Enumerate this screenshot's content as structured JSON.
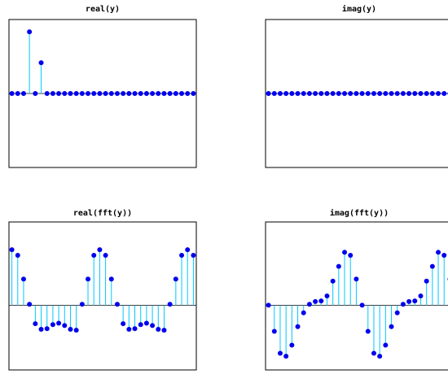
{
  "chart_data": [
    {
      "type": "stem",
      "title": "real(y)",
      "x": [
        1,
        2,
        3,
        4,
        5,
        6,
        7,
        8,
        9,
        10,
        11,
        12,
        13,
        14,
        15,
        16,
        17,
        18,
        19,
        20,
        21,
        22,
        23,
        24,
        25,
        26,
        27,
        28,
        29,
        30,
        31,
        32
      ],
      "values": [
        0,
        0,
        0,
        2,
        0,
        1,
        0,
        0,
        0,
        0,
        0,
        0,
        0,
        0,
        0,
        0,
        0,
        0,
        0,
        0,
        0,
        0,
        0,
        0,
        0,
        0,
        0,
        0,
        0,
        0,
        0,
        0
      ],
      "xlim": [
        0.5,
        32.5
      ],
      "ylim": [
        -2.4,
        2.4
      ],
      "grid": false,
      "colors": {
        "marker": "#0000ee",
        "stem": "#00c8ff",
        "baseline": "#000000"
      }
    },
    {
      "type": "stem",
      "title": "imag(y)",
      "x": [
        1,
        2,
        3,
        4,
        5,
        6,
        7,
        8,
        9,
        10,
        11,
        12,
        13,
        14,
        15,
        16,
        17,
        18,
        19,
        20,
        21,
        22,
        23,
        24,
        25,
        26,
        27,
        28,
        29,
        30,
        31,
        32
      ],
      "values": [
        0,
        0,
        0,
        0,
        0,
        0,
        0,
        0,
        0,
        0,
        0,
        0,
        0,
        0,
        0,
        0,
        0,
        0,
        0,
        0,
        0,
        0,
        0,
        0,
        0,
        0,
        0,
        0,
        0,
        0,
        0,
        0
      ],
      "xlim": [
        0.5,
        32.5
      ],
      "ylim": [
        -2.4,
        2.4
      ],
      "grid": false,
      "colors": {
        "marker": "#0000ee",
        "stem": "#00c8ff",
        "baseline": "#000000"
      }
    },
    {
      "type": "stem",
      "title": "real(fft(y))",
      "x": [
        1,
        2,
        3,
        4,
        5,
        6,
        7,
        8,
        9,
        10,
        11,
        12,
        13,
        14,
        15,
        16,
        17,
        18,
        19,
        20,
        21,
        22,
        23,
        24,
        25,
        26,
        27,
        28,
        29,
        30,
        31,
        32
      ],
      "values": [
        3.0,
        2.7,
        1.41,
        0.05,
        -1.0,
        -1.3,
        -1.27,
        -1.05,
        -0.97,
        -1.1,
        -1.3,
        -1.35,
        0.05,
        1.41,
        2.7,
        3.0,
        2.7,
        1.41,
        0.05,
        -1.0,
        -1.3,
        -1.27,
        -1.05,
        -0.97,
        -1.1,
        -1.3,
        -1.35,
        0.05,
        1.41,
        2.7,
        3.0,
        2.7
      ],
      "xlim": [
        0.5,
        32.5
      ],
      "ylim": [
        -3.5,
        4.5
      ],
      "grid": false,
      "colors": {
        "marker": "#0000ee",
        "stem": "#00c8ff",
        "baseline": "#000000"
      }
    },
    {
      "type": "stem",
      "title": "imag(fft(y))",
      "x": [
        1,
        2,
        3,
        4,
        5,
        6,
        7,
        8,
        9,
        10,
        11,
        12,
        13,
        14,
        15,
        16,
        17,
        18,
        19,
        20,
        21,
        22,
        23,
        24,
        25,
        26,
        27,
        28,
        29,
        30,
        31,
        32
      ],
      "values": [
        0,
        -1.41,
        -2.6,
        -2.76,
        -2.16,
        -1.16,
        -0.41,
        0.05,
        0.2,
        0.23,
        0.5,
        1.3,
        2.1,
        2.86,
        2.7,
        1.41,
        0,
        -1.41,
        -2.6,
        -2.76,
        -2.16,
        -1.16,
        -0.41,
        0.05,
        0.2,
        0.23,
        0.5,
        1.3,
        2.1,
        2.86,
        2.7,
        1.41
      ],
      "xlim": [
        0.5,
        32.5
      ],
      "ylim": [
        -3.5,
        4.5
      ],
      "grid": false,
      "colors": {
        "marker": "#0000ee",
        "stem": "#00c8ff",
        "baseline": "#000000"
      }
    }
  ]
}
